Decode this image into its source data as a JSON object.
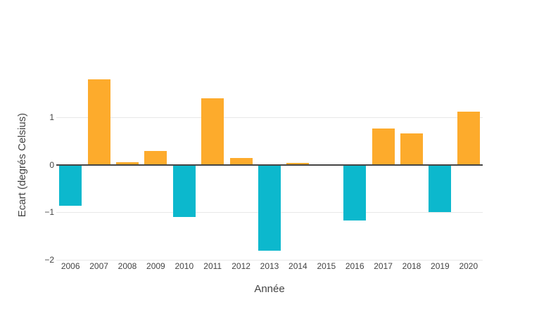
{
  "chart_data": {
    "type": "bar",
    "title": "",
    "xlabel": "Année",
    "ylabel": "Ecart (degrés Celsius)",
    "categories": [
      "2006",
      "2007",
      "2008",
      "2009",
      "2010",
      "2011",
      "2012",
      "2013",
      "2014",
      "2015",
      "2016",
      "2017",
      "2018",
      "2019",
      "2020"
    ],
    "values": [
      -0.87,
      1.8,
      0.05,
      0.29,
      -1.11,
      1.4,
      0.14,
      -1.81,
      0.04,
      0,
      -1.17,
      0.76,
      0.66,
      -1.0,
      1.12
    ],
    "series_note": "positive anomalies drawn orange, negative anomalies drawn cyan",
    "y_ticks": [
      {
        "value": 1,
        "label": "1"
      },
      {
        "value": 0,
        "label": "0"
      },
      {
        "value": -1,
        "label": "−1"
      },
      {
        "value": -2,
        "label": "−2"
      }
    ],
    "ylim": [
      -2,
      2
    ],
    "grid": true,
    "legend": false,
    "colors": {
      "positive": "#fdab2c",
      "negative": "#0cb8cd",
      "gridline": "#e8e8e8",
      "zeroline": "#444444",
      "text": "#444444",
      "background": "#ffffff"
    }
  }
}
